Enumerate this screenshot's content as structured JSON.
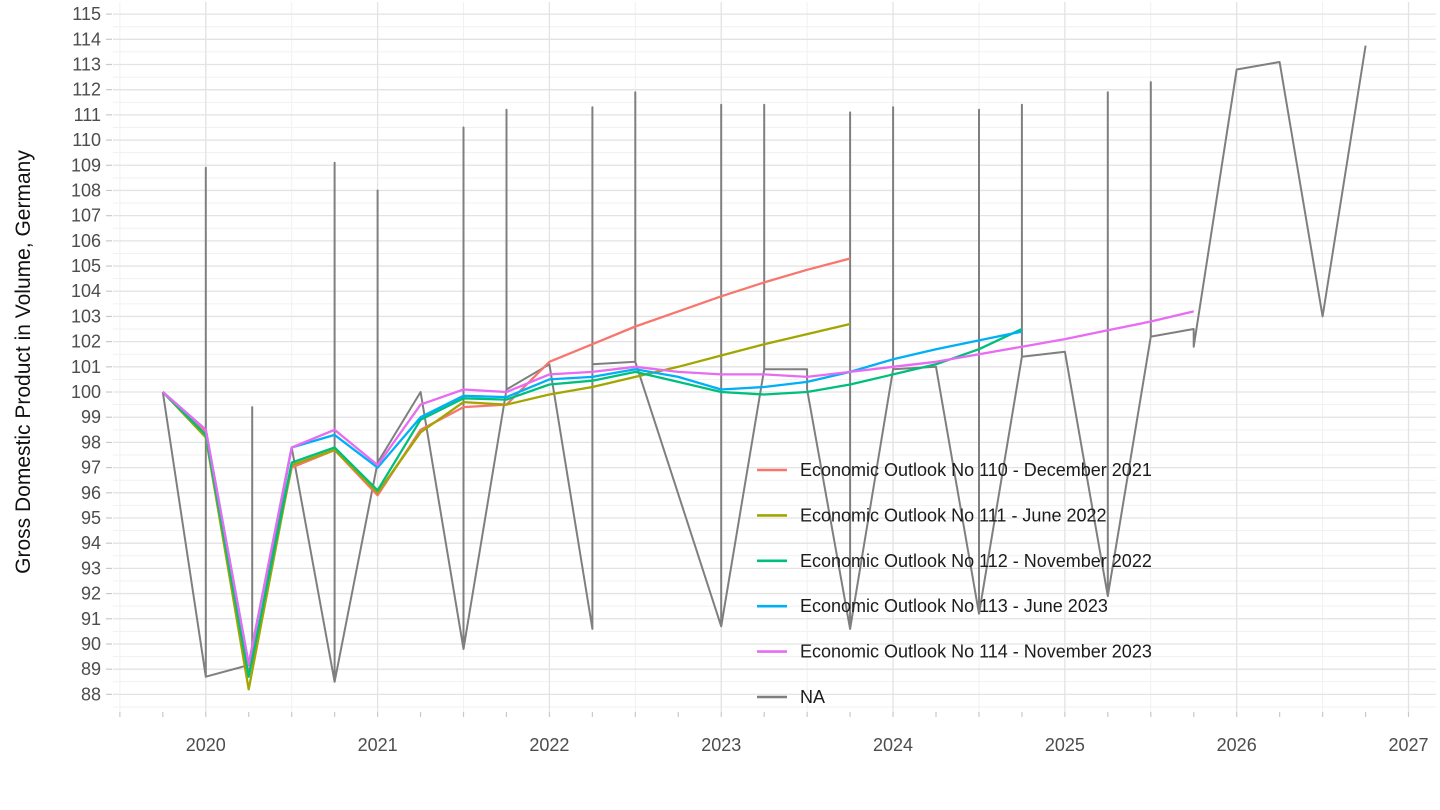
{
  "chart_data": {
    "type": "line",
    "title": "",
    "xlabel": "",
    "ylabel": "Gross Domestic Product in Volume, Germany",
    "x_tick_labels": [
      "2020",
      "2021",
      "2022",
      "2023",
      "2024",
      "2025",
      "2026",
      "2027"
    ],
    "x_tick_values": [
      2020,
      2021,
      2022,
      2023,
      2024,
      2025,
      2026,
      2027
    ],
    "y_tick_min": 88,
    "y_tick_max": 115,
    "y_tick_step": 1,
    "y_minor_step": 0.5,
    "x_minor_step": 0.5,
    "x_range": [
      2019.46,
      2027.16
    ],
    "y_range": [
      87.3,
      115.48
    ],
    "grid": {
      "major": true,
      "minor": true
    },
    "legend_position": "inside-right",
    "series": [
      {
        "name": "Economic Outlook No 110 - December 2021",
        "color": "#F8766D",
        "points": [
          [
            2019.75,
            100
          ],
          [
            2020.0,
            98.4
          ],
          [
            2020.25,
            88.8
          ],
          [
            2020.5,
            97.0
          ],
          [
            2020.75,
            97.7
          ],
          [
            2021.0,
            95.9
          ],
          [
            2021.25,
            98.5
          ],
          [
            2021.5,
            99.4
          ],
          [
            2021.75,
            99.5
          ],
          [
            2022.0,
            101.2
          ],
          [
            2022.25,
            101.9
          ],
          [
            2022.5,
            102.6
          ],
          [
            2022.75,
            103.2
          ],
          [
            2023.0,
            103.8
          ],
          [
            2023.25,
            104.35
          ],
          [
            2023.5,
            104.85
          ],
          [
            2023.75,
            105.3
          ]
        ]
      },
      {
        "name": "Economic Outlook No 111 - June 2022",
        "color": "#A3A500",
        "points": [
          [
            2019.75,
            100
          ],
          [
            2020.0,
            98.2
          ],
          [
            2020.25,
            88.2
          ],
          [
            2020.5,
            97.1
          ],
          [
            2020.75,
            97.7
          ],
          [
            2021.0,
            96.0
          ],
          [
            2021.25,
            98.4
          ],
          [
            2021.5,
            99.6
          ],
          [
            2021.75,
            99.5
          ],
          [
            2022.0,
            99.9
          ],
          [
            2022.25,
            100.2
          ],
          [
            2022.5,
            100.6
          ],
          [
            2022.75,
            101.0
          ],
          [
            2023.0,
            101.45
          ],
          [
            2023.25,
            101.9
          ],
          [
            2023.5,
            102.3
          ],
          [
            2023.75,
            102.7
          ]
        ]
      },
      {
        "name": "Economic Outlook No 112 - November 2022",
        "color": "#00BF7D",
        "points": [
          [
            2019.75,
            100
          ],
          [
            2020.0,
            98.3
          ],
          [
            2020.25,
            88.7
          ],
          [
            2020.5,
            97.2
          ],
          [
            2020.75,
            97.8
          ],
          [
            2021.0,
            96.1
          ],
          [
            2021.25,
            98.9
          ],
          [
            2021.5,
            99.75
          ],
          [
            2021.75,
            99.7
          ],
          [
            2022.0,
            100.3
          ],
          [
            2022.25,
            100.45
          ],
          [
            2022.5,
            100.8
          ],
          [
            2022.75,
            100.4
          ],
          [
            2023.0,
            100.0
          ],
          [
            2023.25,
            99.9
          ],
          [
            2023.5,
            100.0
          ],
          [
            2023.75,
            100.3
          ],
          [
            2024.0,
            100.7
          ],
          [
            2024.25,
            101.1
          ],
          [
            2024.5,
            101.7
          ],
          [
            2024.75,
            102.5
          ]
        ]
      },
      {
        "name": "Economic Outlook No 113 - June 2023",
        "color": "#00B0F6",
        "points": [
          [
            2019.75,
            100
          ],
          [
            2020.0,
            98.5
          ],
          [
            2020.25,
            89.2
          ],
          [
            2020.5,
            97.8
          ],
          [
            2020.75,
            98.3
          ],
          [
            2021.0,
            97.0
          ],
          [
            2021.25,
            99.0
          ],
          [
            2021.5,
            99.85
          ],
          [
            2021.75,
            99.8
          ],
          [
            2022.0,
            100.5
          ],
          [
            2022.25,
            100.6
          ],
          [
            2022.5,
            100.9
          ],
          [
            2022.75,
            100.6
          ],
          [
            2023.0,
            100.1
          ],
          [
            2023.25,
            100.2
          ],
          [
            2023.5,
            100.4
          ],
          [
            2023.75,
            100.8
          ],
          [
            2024.0,
            101.3
          ],
          [
            2024.25,
            101.7
          ],
          [
            2024.5,
            102.05
          ],
          [
            2024.75,
            102.4
          ]
        ]
      },
      {
        "name": "Economic Outlook No 114 - November 2023",
        "color": "#E76BF3",
        "points": [
          [
            2019.75,
            100
          ],
          [
            2020.0,
            98.5
          ],
          [
            2020.25,
            89.2
          ],
          [
            2020.5,
            97.8
          ],
          [
            2020.75,
            98.5
          ],
          [
            2021.0,
            97.1
          ],
          [
            2021.25,
            99.5
          ],
          [
            2021.5,
            100.1
          ],
          [
            2021.75,
            100.0
          ],
          [
            2022.0,
            100.7
          ],
          [
            2022.25,
            100.8
          ],
          [
            2022.5,
            101.0
          ],
          [
            2022.75,
            100.8
          ],
          [
            2023.0,
            100.7
          ],
          [
            2023.25,
            100.7
          ],
          [
            2023.5,
            100.6
          ],
          [
            2023.75,
            100.8
          ],
          [
            2024.0,
            101.0
          ],
          [
            2024.25,
            101.2
          ],
          [
            2024.5,
            101.5
          ],
          [
            2024.75,
            101.8
          ],
          [
            2025.0,
            102.1
          ],
          [
            2025.25,
            102.45
          ],
          [
            2025.5,
            102.8
          ],
          [
            2025.75,
            103.2
          ]
        ]
      },
      {
        "name": "NA",
        "color": "#7F7F7F",
        "points": [
          [
            2019.75,
            100
          ],
          [
            2020.0,
            88.7
          ],
          [
            2020.0,
            108.9
          ],
          [
            2020.0,
            88.7
          ],
          [
            2020.27,
            89.2
          ],
          [
            2020.27,
            99.4
          ],
          [
            2020.27,
            89.2
          ],
          [
            2020.5,
            97.8
          ],
          [
            2020.75,
            88.5
          ],
          [
            2020.75,
            109.1
          ],
          [
            2020.75,
            88.5
          ],
          [
            2021.0,
            97.2
          ],
          [
            2021.0,
            108.0
          ],
          [
            2021.0,
            97.2
          ],
          [
            2021.25,
            100.0
          ],
          [
            2021.5,
            89.8
          ],
          [
            2021.5,
            110.5
          ],
          [
            2021.5,
            89.8
          ],
          [
            2021.75,
            100.1
          ],
          [
            2021.75,
            111.2
          ],
          [
            2021.75,
            100.1
          ],
          [
            2022.0,
            101.1
          ],
          [
            2022.25,
            90.6
          ],
          [
            2022.25,
            111.3
          ],
          [
            2022.25,
            101.1
          ],
          [
            2022.5,
            101.2
          ],
          [
            2022.5,
            111.9
          ],
          [
            2022.5,
            101.2
          ],
          [
            2023.0,
            90.7
          ],
          [
            2023.0,
            111.4
          ],
          [
            2023.0,
            90.7
          ],
          [
            2023.25,
            100.9
          ],
          [
            2023.25,
            111.4
          ],
          [
            2023.25,
            100.9
          ],
          [
            2023.5,
            100.9
          ],
          [
            2023.5,
            100.1
          ],
          [
            2023.75,
            90.6
          ],
          [
            2023.75,
            111.1
          ],
          [
            2023.75,
            90.6
          ],
          [
            2024.0,
            100.9
          ],
          [
            2024.0,
            111.3
          ],
          [
            2024.0,
            100.9
          ],
          [
            2024.25,
            101.0
          ],
          [
            2024.5,
            91.2
          ],
          [
            2024.5,
            111.2
          ],
          [
            2024.5,
            91.2
          ],
          [
            2024.75,
            101.4
          ],
          [
            2024.75,
            111.4
          ],
          [
            2024.75,
            101.4
          ],
          [
            2025.0,
            101.6
          ],
          [
            2025.25,
            91.9
          ],
          [
            2025.25,
            111.9
          ],
          [
            2025.25,
            91.9
          ],
          [
            2025.5,
            102.2
          ],
          [
            2025.5,
            112.3
          ],
          [
            2025.5,
            102.2
          ],
          [
            2025.75,
            102.5
          ],
          [
            2025.75,
            101.8
          ],
          [
            2026.0,
            112.8
          ],
          [
            2026.25,
            113.1
          ],
          [
            2026.5,
            103.0
          ],
          [
            2026.75,
            113.75
          ]
        ]
      }
    ],
    "legend_items": [
      {
        "label": "Economic Outlook No 110 - December 2021",
        "color": "#F8766D"
      },
      {
        "label": "Economic Outlook No 111 - June 2022",
        "color": "#A3A500"
      },
      {
        "label": "Economic Outlook No 112 - November 2022",
        "color": "#00BF7D"
      },
      {
        "label": "Economic Outlook No 113 - June 2023",
        "color": "#00B0F6"
      },
      {
        "label": "Economic Outlook No 114 - November 2023",
        "color": "#E76BF3"
      },
      {
        "label": "NA",
        "color": "#7F7F7F"
      }
    ]
  },
  "colors": {
    "background": "#ffffff",
    "grid_major": "#e3e3e3",
    "grid_minor": "#f1f1f1",
    "tick_mark": "#c9c9c9",
    "axis_text": "#4d4d4d",
    "axis_title_text": "#111111",
    "legend_text": "#1c1c1c"
  }
}
